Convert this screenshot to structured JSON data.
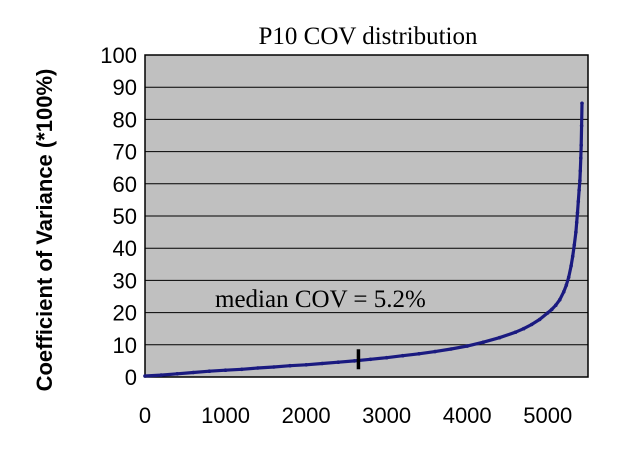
{
  "chart_data": {
    "type": "scatter",
    "title": "P10 COV distribution",
    "xlabel": "",
    "ylabel": "Coefficient of Variance (*100%)",
    "xlim": [
      0,
      5500
    ],
    "ylim": [
      0,
      100
    ],
    "x_ticks": [
      "0",
      "1000",
      "2000",
      "3000",
      "4000",
      "5000"
    ],
    "y_ticks": [
      "0",
      "10",
      "20",
      "30",
      "40",
      "50",
      "60",
      "70",
      "80",
      "90",
      "100"
    ],
    "grid": true,
    "legend": "none",
    "plot_background": "#c0c0c0",
    "series_color": "#1a1a80",
    "series": [
      {
        "x": [
          0,
          200,
          400,
          600,
          800,
          1000,
          1200,
          1400,
          1600,
          1800,
          2000,
          2200,
          2400,
          2600,
          2800,
          3000,
          3200,
          3400,
          3600,
          3800,
          4000,
          4200,
          4400,
          4600,
          4700,
          4800,
          4900,
          5000,
          5050,
          5100,
          5150,
          5200,
          5230,
          5260,
          5290,
          5310,
          5330,
          5350,
          5360,
          5370,
          5380,
          5390,
          5400,
          5405,
          5410,
          5415,
          5420,
          5425
        ],
        "y": [
          0.3,
          0.6,
          1.0,
          1.4,
          1.8,
          2.1,
          2.4,
          2.8,
          3.1,
          3.5,
          3.8,
          4.2,
          4.6,
          5.0,
          5.5,
          6.0,
          6.6,
          7.2,
          7.9,
          8.7,
          9.6,
          10.8,
          12.2,
          13.9,
          15.0,
          16.3,
          17.9,
          19.9,
          21.0,
          22.3,
          24.0,
          26.5,
          28.5,
          31.0,
          34.5,
          37.5,
          41.0,
          45.0,
          48.0,
          51.0,
          54.5,
          58.0,
          61.0,
          64.0,
          68.0,
          72.0,
          78.0,
          85.0
        ]
      }
    ],
    "marker": {
      "x": 2650,
      "y": 5.2
    },
    "annotation": "median COV = 5.2%"
  }
}
